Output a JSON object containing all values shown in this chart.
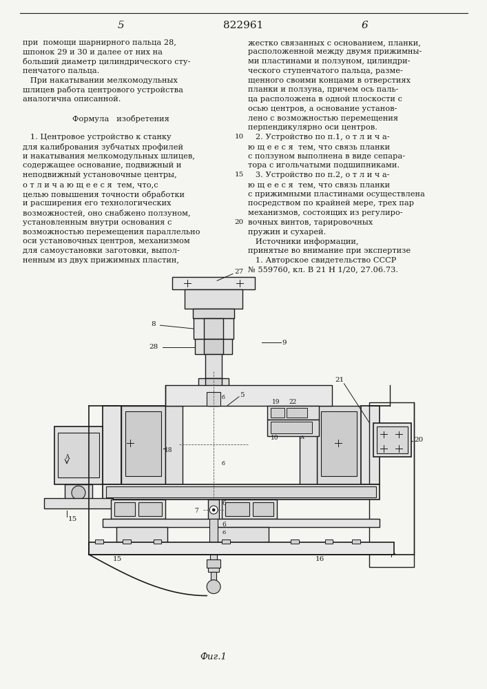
{
  "page_width": 7.07,
  "page_height": 10.0,
  "dpi": 100,
  "bg_color": "#f5f5f2",
  "text_color": "#1a1a1a",
  "line_color": "#1a1a1a",
  "header_left_num": "5",
  "header_center_num": "822961",
  "header_right_num": "6",
  "left_col_text": [
    "при  помощи шарнирного пальца 28,",
    "шпонок 29 и 30 и далее от них на",
    "больший диаметр цилиндрического сту-",
    "пенчатого пальца.",
    "   При накатывании мелкомодульных",
    "шлицев работа центрового устройства",
    "аналогична описанной.",
    "",
    "         Формула   изобретения",
    "",
    "   1. Центровое устройство к станку",
    "для калибрования зубчатых профилей",
    "и накатывания мелкомодульных шлицев,",
    "содержащее основание, подвижный и",
    "неподвижный установочные центры,",
    "о т л и ч а ю щ е е с я  тем, что,с",
    "целью повышения точности обработки",
    "и расширения его технологических",
    "возможностей, оно снабжено ползуном,",
    "установленным внутри основания с",
    "возможностью перемещения параллельно",
    "оси установочных центров, механизмом",
    "для самоустановки заготовки, выпол-",
    "ненным из двух прижимных пластин,"
  ],
  "right_col_text": [
    "жестко связанных с основанием, планки,",
    "расположенной между двумя прижимны-",
    "ми пластинами и ползуном, цилиндри-",
    "ческого ступенчатого пальца, разме-",
    "щенного своими концами в отверстиях",
    "планки и ползуна, причем ось паль-",
    "ца расположена в одной плоскости с",
    "осью центров, а основание установ-",
    "лено с возможностью перемещения",
    "перпендикулярно оси центров.",
    "   2. Устройство по п.1, о т л и ч а-",
    "ю щ е е с я  тем, что связь планки",
    "с ползуном выполнена в виде сепара-",
    "тора с игольчатыми подшипниками.",
    "   3. Устройство по п.2, о т л и ч а-",
    "ю щ е е с я  тем, что связь планки",
    "с прижимными пластинами осуществлена",
    "посредством по крайней мере, трех пар",
    "механизмов, состоящих из регулиро-",
    "вочных винтов, тарировочных",
    "пружин и сухарей.",
    "   Источники информации,",
    "принятые во внимание при экспертизе",
    "   1. Авторское свидетельство СССР",
    "№ 559760, кл. В 21 Н 1/20, 27.06.73."
  ],
  "fig_caption": "Фиг.1"
}
